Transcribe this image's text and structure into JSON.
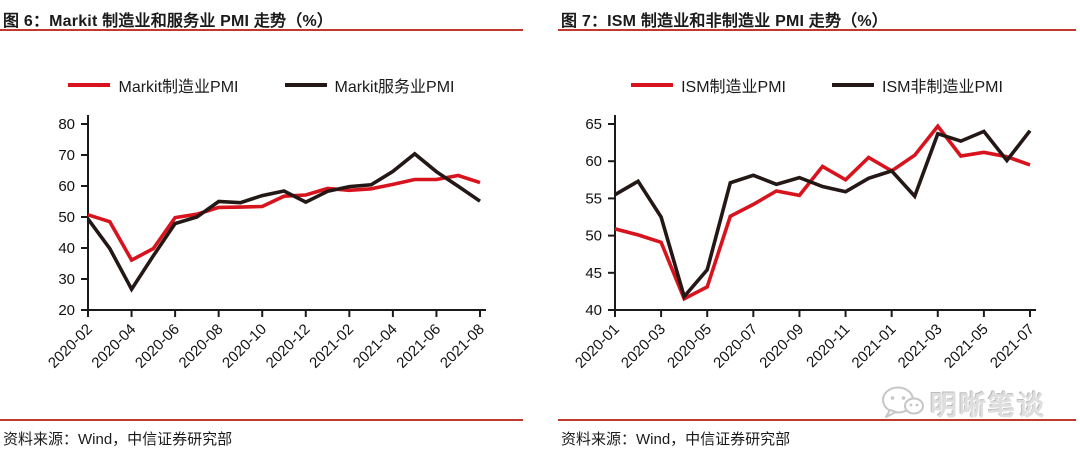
{
  "colors": {
    "series_red": "#d7141e",
    "series_black": "#231815",
    "rule_red": "#c0392b",
    "watermark_gray": "#dedede"
  },
  "watermark": {
    "label": "明晰笔谈",
    "icon": "wechat-icon"
  },
  "panels": [
    {
      "title": "图 6：Markit 制造业和服务业 PMI 走势（%）",
      "source": "资料来源：Wind，中信证券研究部",
      "chart_data": {
        "type": "line",
        "x": [
          "2020-02",
          "2020-03",
          "2020-04",
          "2020-05",
          "2020-06",
          "2020-07",
          "2020-08",
          "2020-09",
          "2020-10",
          "2020-11",
          "2020-12",
          "2021-01",
          "2021-02",
          "2021-03",
          "2021-04",
          "2021-05",
          "2021-06",
          "2021-07",
          "2021-08"
        ],
        "x_tick_step": 2,
        "ylim": [
          20,
          80
        ],
        "y_ticks": [
          20,
          30,
          40,
          50,
          60,
          70,
          80
        ],
        "grid": false,
        "legend_position": "top",
        "series": [
          {
            "name": "Markit制造业PMI",
            "color": "#d7141e",
            "values": [
              50.7,
              48.5,
              36.1,
              39.8,
              49.8,
              50.9,
              53.1,
              53.2,
              53.4,
              56.7,
              57.1,
              59.2,
              58.6,
              59.1,
              60.5,
              62.1,
              62.1,
              63.4,
              61.1
            ]
          },
          {
            "name": "Markit服务业PMI",
            "color": "#231815",
            "values": [
              49.4,
              39.8,
              26.7,
              37.5,
              47.9,
              50.0,
              55.0,
              54.6,
              56.9,
              58.4,
              54.8,
              58.3,
              59.8,
              60.4,
              64.7,
              70.4,
              64.6,
              59.9,
              55.1
            ]
          }
        ]
      }
    },
    {
      "title": "图 7：ISM 制造业和非制造业 PMI 走势（%）",
      "source": "资料来源：Wind，中信证券研究部",
      "chart_data": {
        "type": "line",
        "x": [
          "2020-01",
          "2020-02",
          "2020-03",
          "2020-04",
          "2020-05",
          "2020-06",
          "2020-07",
          "2020-08",
          "2020-09",
          "2020-10",
          "2020-11",
          "2020-12",
          "2021-01",
          "2021-02",
          "2021-03",
          "2021-04",
          "2021-05",
          "2021-06",
          "2021-07"
        ],
        "x_tick_step": 2,
        "ylim": [
          40,
          65
        ],
        "y_ticks": [
          40,
          45,
          50,
          55,
          60,
          65
        ],
        "grid": false,
        "legend_position": "top",
        "series": [
          {
            "name": "ISM制造业PMI",
            "color": "#d7141e",
            "values": [
              50.9,
              50.1,
              49.1,
              41.5,
              43.1,
              52.6,
              54.2,
              56.0,
              55.4,
              59.3,
              57.5,
              60.5,
              58.7,
              60.8,
              64.7,
              60.7,
              61.2,
              60.6,
              59.5
            ]
          },
          {
            "name": "ISM非制造业PMI",
            "color": "#231815",
            "values": [
              55.5,
              57.3,
              52.5,
              41.8,
              45.4,
              57.1,
              58.1,
              56.9,
              57.8,
              56.6,
              55.9,
              57.7,
              58.7,
              55.3,
              63.7,
              62.7,
              64.0,
              60.1,
              64.1
            ]
          }
        ]
      }
    }
  ]
}
